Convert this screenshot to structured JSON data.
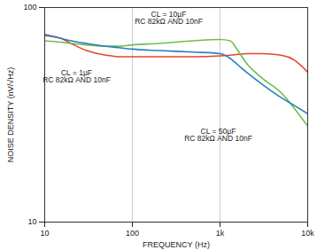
{
  "chart_data": {
    "type": "line",
    "log": true,
    "grid": true,
    "x_label": "FREQUENCY (Hz)",
    "y_label": "NOISE DENSITY (nV/√Hz)",
    "xlim": [
      10,
      10000
    ],
    "ylim": [
      10,
      100
    ],
    "xticks": [
      10,
      100,
      {
        "value": 1000,
        "label": "1k"
      },
      {
        "value": 10000,
        "label": "10k"
      }
    ],
    "yticks": [
      10,
      100
    ],
    "x": [
      10,
      15,
      20,
      30,
      50,
      70,
      100,
      200,
      500,
      1000,
      1300,
      1600,
      2000,
      3000,
      5000,
      7000,
      10000
    ],
    "series": [
      {
        "name": "CL = 1µF",
        "color": "#e8432b",
        "values": [
          74,
          72,
          68,
          63,
          60,
          59,
          59,
          59,
          59,
          59.5,
          60,
          60.5,
          61,
          61,
          60,
          57,
          50
        ]
      },
      {
        "name": "CL = 10µF",
        "color": "#6cbf4b",
        "values": [
          70,
          69,
          68,
          67,
          66,
          66,
          67,
          68,
          70,
          71,
          70,
          63,
          55,
          47,
          40,
          34,
          28
        ]
      },
      {
        "name": "CL = 50µF",
        "color": "#2a7fc0",
        "values": [
          75,
          72,
          70,
          68,
          66,
          65,
          64,
          63,
          62,
          61,
          58,
          54,
          50,
          44,
          38,
          35,
          32
        ]
      }
    ],
    "annotations": [
      {
        "text": "CL = 10µF\nRC 82kΩ AND 10nF"
      },
      {
        "text": "CL = 1µF\nRC 82kΩ AND 10nF"
      },
      {
        "text": "CL = 50µF\nRC 82kΩ AND 10nF"
      }
    ]
  }
}
